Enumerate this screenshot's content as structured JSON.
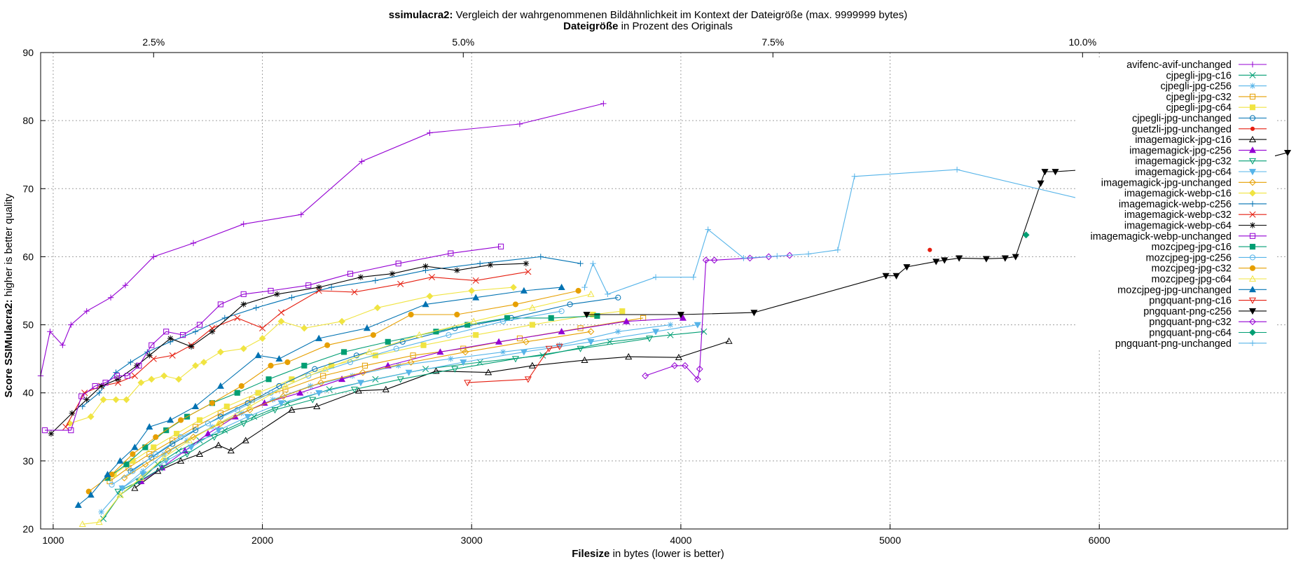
{
  "chart_data": {
    "type": "line",
    "title_bold": "ssimulacra2:",
    "title_rest": " Vergleich der wahrgenommenen Bildähnlichkeit im Kontext der Dateigröße (max. 9999999 bytes)",
    "x2label_bold": "Dateigröße",
    "x2label_rest": " in Prozent des Originals",
    "xlabel_bold": "Filesize",
    "xlabel_rest": " in bytes (lower is better)",
    "ylabel_bold": "Score SSIMulacra2:",
    "ylabel_rest": " higher is better quality",
    "xlim": [
      940,
      6900
    ],
    "ylim": [
      20,
      90
    ],
    "xticks": [
      1000,
      2000,
      3000,
      4000,
      5000,
      6000
    ],
    "yticks": [
      20,
      30,
      40,
      50,
      60,
      70,
      80,
      90
    ],
    "x2ticks": [
      {
        "label": "2.5%",
        "value": 1480
      },
      {
        "label": "5.0%",
        "value": 2960
      },
      {
        "label": "7.5%",
        "value": 4440
      },
      {
        "label": "10.0%",
        "value": 5920
      }
    ],
    "grid": true,
    "legend_position": "top-right",
    "series": [
      {
        "name": "avifenc-avif-unchanged",
        "color": "#9400d3",
        "marker": "plus",
        "x": [
          940,
          985,
          1045,
          1085,
          1160,
          1275,
          1345,
          1480,
          1670,
          1910,
          2185,
          2475,
          2800,
          3230,
          3630
        ],
        "y": [
          42.5,
          49,
          47,
          50,
          52,
          54,
          55.8,
          60,
          62,
          64.8,
          66.2,
          74,
          78.2,
          79.5,
          82.5
        ]
      },
      {
        "name": "cjpegli-jpg-c16",
        "color": "#009e73",
        "marker": "x",
        "x": [
          1240,
          1320,
          1410,
          1500,
          1600,
          1700,
          1820,
          1960,
          2120,
          2320,
          2540,
          2780,
          3040,
          3340,
          3660,
          3950,
          4110
        ],
        "y": [
          21.5,
          25,
          27,
          29.5,
          31.5,
          33,
          34.5,
          36.5,
          38.5,
          40.5,
          42,
          43.5,
          44.5,
          45.5,
          47.5,
          48.5,
          49
        ]
      },
      {
        "name": "cjpegli-jpg-c256",
        "color": "#56b4e9",
        "marker": "star",
        "x": [
          1230,
          1330,
          1430,
          1530,
          1640,
          1760,
          1900,
          2050,
          2230,
          2430,
          2650,
          2900,
          3150,
          3420,
          3700,
          3950
        ],
        "y": [
          22.5,
          26,
          28.5,
          31,
          33,
          35,
          37,
          39,
          41,
          42.5,
          44,
          45,
          46,
          47,
          49,
          50
        ]
      },
      {
        "name": "cjpegli-jpg-c32",
        "color": "#e69f00",
        "marker": "square-open",
        "x": [
          1270,
          1360,
          1460,
          1570,
          1680,
          1800,
          1950,
          2110,
          2290,
          2490,
          2720,
          2960,
          3230,
          3520,
          3820
        ],
        "y": [
          27,
          29,
          31,
          33,
          35,
          37,
          39,
          40.5,
          42.5,
          44,
          45.5,
          46.5,
          48,
          49.5,
          51
        ]
      },
      {
        "name": "cjpegli-jpg-c64",
        "color": "#f0e442",
        "marker": "square",
        "x": [
          1290,
          1380,
          1480,
          1590,
          1700,
          1830,
          1980,
          2140,
          2330,
          2540,
          2770,
          3020,
          3290,
          3580,
          3720
        ],
        "y": [
          28,
          30,
          32,
          34,
          36,
          38,
          40,
          42,
          44,
          45.5,
          47,
          48.5,
          50,
          51.5,
          52
        ]
      },
      {
        "name": "cjpegli-jpg-unchanged",
        "color": "#0072b2",
        "marker": "circle-open",
        "x": [
          1370,
          1470,
          1570,
          1680,
          1800,
          1930,
          2080,
          2250,
          2450,
          2670,
          2920,
          3190,
          3470,
          3700
        ],
        "y": [
          28.5,
          30.5,
          32.5,
          34.5,
          36.5,
          38.5,
          41,
          43.5,
          45.5,
          47.5,
          49.5,
          51,
          53,
          54
        ]
      },
      {
        "name": "guetzli-jpg-unchanged",
        "color": "#e51e10",
        "marker": "dot",
        "x": [
          5190
        ],
        "y": [
          61
        ]
      },
      {
        "name": "imagemagick-jpg-c16",
        "color": "#000000",
        "marker": "triangle-open",
        "x": [
          1390,
          1500,
          1610,
          1700,
          1790,
          1850,
          1920,
          2140,
          2260,
          2460,
          2590,
          2830,
          3080,
          3290,
          3540,
          3750,
          3990,
          4230
        ],
        "y": [
          26,
          28.5,
          30,
          31,
          32.3,
          31.5,
          33,
          37.5,
          38,
          40.3,
          40.5,
          43.2,
          43,
          44,
          44.8,
          45.3,
          45.2,
          47.6
        ]
      },
      {
        "name": "imagemagick-jpg-c256",
        "color": "#9400d3",
        "marker": "triangle",
        "x": [
          1420,
          1520,
          1630,
          1740,
          1870,
          2010,
          2180,
          2380,
          2600,
          2850,
          3130,
          3430,
          3740,
          4010
        ],
        "y": [
          27,
          29,
          31.5,
          34,
          36.5,
          38.5,
          40,
          42,
          44,
          46,
          47.5,
          49,
          50.5,
          51
        ]
      },
      {
        "name": "imagemagick-jpg-c32",
        "color": "#009e73",
        "marker": "triangle-down-open",
        "x": [
          1310,
          1410,
          1520,
          1640,
          1770,
          1910,
          2060,
          2240,
          2440,
          2660,
          2920,
          3210,
          3520,
          3850
        ],
        "y": [
          25.5,
          27,
          29,
          31,
          33.5,
          35.5,
          37.5,
          39,
          40.5,
          42,
          43.5,
          45,
          46.5,
          48
        ]
      },
      {
        "name": "imagemagick-jpg-c64",
        "color": "#56b4e9",
        "marker": "triangle-down",
        "x": [
          1330,
          1430,
          1540,
          1660,
          1790,
          1930,
          2090,
          2270,
          2470,
          2700,
          2960,
          3250,
          3570,
          3880,
          4080
        ],
        "y": [
          26,
          28,
          30,
          32,
          34.5,
          36.5,
          38.5,
          40,
          41.5,
          43,
          44.5,
          46,
          47.5,
          49,
          50
        ]
      },
      {
        "name": "imagemagick-jpg-unchanged",
        "color": "#e69f00",
        "marker": "diamond-open",
        "x": [
          1340,
          1440,
          1550,
          1670,
          1800,
          1940,
          2100,
          2280,
          2480,
          2710,
          2970,
          3260,
          3570
        ],
        "y": [
          27.5,
          29.5,
          31.5,
          33.5,
          35.5,
          37.5,
          39.5,
          41.5,
          43,
          44.5,
          46,
          47.5,
          49
        ]
      },
      {
        "name": "imagemagick-webp-c16",
        "color": "#f0e442",
        "marker": "diamond",
        "x": [
          1080,
          1180,
          1240,
          1300,
          1350,
          1420,
          1470,
          1530,
          1600,
          1680,
          1720,
          1800,
          1910,
          2000,
          2090,
          2200,
          2380,
          2550,
          2800,
          3000,
          3200
        ],
        "y": [
          35.5,
          36.5,
          39,
          39,
          39,
          41.5,
          42,
          42.5,
          42,
          44,
          44.5,
          46,
          46.5,
          48,
          50.5,
          49.5,
          50.5,
          52.5,
          54.2,
          55,
          55.5
        ]
      },
      {
        "name": "imagemagick-webp-c256",
        "color": "#0072b2",
        "marker": "plus",
        "x": [
          1140,
          1220,
          1300,
          1370,
          1450,
          1560,
          1680,
          1820,
          1970,
          2140,
          2330,
          2540,
          2780,
          3040,
          3330,
          3520
        ],
        "y": [
          38,
          40,
          43,
          44.5,
          46,
          47.5,
          49,
          51,
          52.5,
          54,
          55.5,
          56.5,
          58,
          59,
          60,
          59
        ]
      },
      {
        "name": "imagemagick-webp-c32",
        "color": "#e51e10",
        "marker": "x",
        "x": [
          1060,
          1150,
          1230,
          1310,
          1390,
          1480,
          1570,
          1660,
          1760,
          1880,
          2000,
          2090,
          2270,
          2440,
          2660,
          2810,
          3020,
          3270
        ],
        "y": [
          35,
          40,
          41,
          41.5,
          42.5,
          45,
          45.5,
          47,
          49.5,
          51,
          49.5,
          51.8,
          55,
          54.8,
          56,
          57,
          56.5,
          57.8
        ]
      },
      {
        "name": "imagemagick-webp-c64",
        "color": "#000000",
        "marker": "star",
        "x": [
          990,
          1090,
          1160,
          1230,
          1310,
          1400,
          1460,
          1560,
          1660,
          1760,
          1910,
          2070,
          2270,
          2470,
          2620,
          2780,
          2930,
          3090,
          3260
        ],
        "y": [
          34,
          37,
          39,
          41,
          42,
          44,
          45.5,
          48,
          46.8,
          49,
          53,
          54.5,
          55.5,
          57,
          57.5,
          58.6,
          58,
          58.8,
          59
        ]
      },
      {
        "name": "imagemagick-webp-unchanged",
        "color": "#9400d3",
        "marker": "square-open",
        "x": [
          960,
          1085,
          1135,
          1200,
          1250,
          1305,
          1355,
          1410,
          1470,
          1540,
          1620,
          1700,
          1800,
          1910,
          2040,
          2220,
          2420,
          2650,
          2900,
          3140
        ],
        "y": [
          34.5,
          34.5,
          39.5,
          41,
          41.5,
          42.5,
          42.5,
          44,
          47,
          49,
          48.5,
          50,
          53,
          54.5,
          55,
          55.8,
          57.5,
          59,
          60.5,
          61.5
        ]
      },
      {
        "name": "mozcjpeg-jpg-c16",
        "color": "#009e73",
        "marker": "square",
        "x": [
          1260,
          1350,
          1440,
          1540,
          1640,
          1760,
          1880,
          2030,
          2200,
          2390,
          2600,
          2830,
          2980,
          3170,
          3380,
          3600
        ],
        "y": [
          27.5,
          29.5,
          32,
          34.5,
          36.5,
          38.5,
          40,
          42,
          44,
          46,
          47.5,
          49,
          50,
          51,
          51,
          51.3
        ]
      },
      {
        "name": "mozcjpeg-jpg-c256",
        "color": "#56b4e9",
        "marker": "circle-open",
        "x": [
          1280,
          1380,
          1490,
          1610,
          1740,
          1880,
          2040,
          2220,
          2420,
          2640,
          2890,
          3150,
          3430
        ],
        "y": [
          26.5,
          28.5,
          31,
          33.5,
          35.5,
          37.5,
          40,
          42.5,
          44.5,
          46.5,
          48.5,
          50.5,
          52
        ]
      },
      {
        "name": "mozcjpeg-jpg-c32",
        "color": "#e69f00",
        "marker": "circle",
        "x": [
          1170,
          1280,
          1380,
          1490,
          1610,
          1760,
          1900,
          2040,
          2120,
          2310,
          2530,
          2710,
          2930,
          3210,
          3510
        ],
        "y": [
          25.5,
          28,
          31,
          33.5,
          36,
          38.5,
          41,
          44,
          44.5,
          47,
          48.5,
          51.5,
          51.5,
          53,
          55
        ]
      },
      {
        "name": "mozcjpeg-jpg-c64",
        "color": "#f0e442",
        "marker": "triangle-open",
        "x": [
          1140,
          1220,
          1320,
          1420,
          1530,
          1650,
          1790,
          1940,
          2110,
          2300,
          2510,
          2750,
          3010,
          3290,
          3570
        ],
        "y": [
          20.7,
          21,
          25,
          27.5,
          30.5,
          33,
          35.5,
          38,
          41,
          43.5,
          46,
          48.5,
          50.5,
          52.5,
          54.5
        ]
      },
      {
        "name": "mozcjpeg-jpg-unchanged",
        "color": "#0072b2",
        "marker": "triangle",
        "x": [
          1120,
          1180,
          1260,
          1320,
          1390,
          1460,
          1560,
          1680,
          1800,
          1980,
          2080,
          2270,
          2500,
          2780,
          3020,
          3250,
          3430
        ],
        "y": [
          23.5,
          25,
          28,
          30,
          32,
          35,
          36,
          38,
          41,
          45.5,
          45,
          48,
          49.5,
          53,
          54,
          55,
          55.5
        ]
      },
      {
        "name": "pngquant-png-c16",
        "color": "#e51e10",
        "marker": "triangle-down-open",
        "x": [
          2980,
          3270,
          3370,
          3420
        ],
        "y": [
          41.5,
          42,
          46.5,
          46.8
        ]
      },
      {
        "name": "pngquant-png-c256",
        "color": "#000000",
        "marker": "triangle-down",
        "x": [
          3550,
          4000,
          4350,
          4980,
          5030,
          5080,
          5220,
          5260,
          5330,
          5460,
          5550,
          5600,
          5720,
          5740,
          5790,
          5940,
          6140,
          6320,
          6700,
          6900
        ],
        "y": [
          51.5,
          51.5,
          51.8,
          57.2,
          57.2,
          58.5,
          59.3,
          59.5,
          59.8,
          59.7,
          59.8,
          60,
          70.8,
          72.5,
          72.5,
          72.8,
          73,
          73.3,
          73.7,
          75.3
        ]
      },
      {
        "name": "pngquant-png-c32",
        "color": "#9400d3",
        "marker": "diamond-open",
        "x": [
          3830,
          3970,
          4020,
          4080,
          4090,
          4120,
          4160,
          4330,
          4420,
          4520
        ],
        "y": [
          42.5,
          44,
          44,
          42,
          43.5,
          59.5,
          59.5,
          59.8,
          60,
          60.2
        ]
      },
      {
        "name": "pngquant-png-c64",
        "color": "#009e73",
        "marker": "diamond",
        "x": [
          5650
        ],
        "y": [
          63.2
        ]
      },
      {
        "name": "pngquant-png-unchanged",
        "color": "#56b4e9",
        "marker": "plus",
        "x": [
          3540,
          3580,
          3650,
          3880,
          4060,
          4130,
          4300,
          4460,
          4610,
          4750,
          4830,
          5320,
          5980
        ],
        "y": [
          55.5,
          59,
          54.5,
          57,
          57,
          64,
          59.8,
          60.1,
          60.4,
          61,
          71.8,
          72.8,
          68
        ]
      }
    ]
  }
}
